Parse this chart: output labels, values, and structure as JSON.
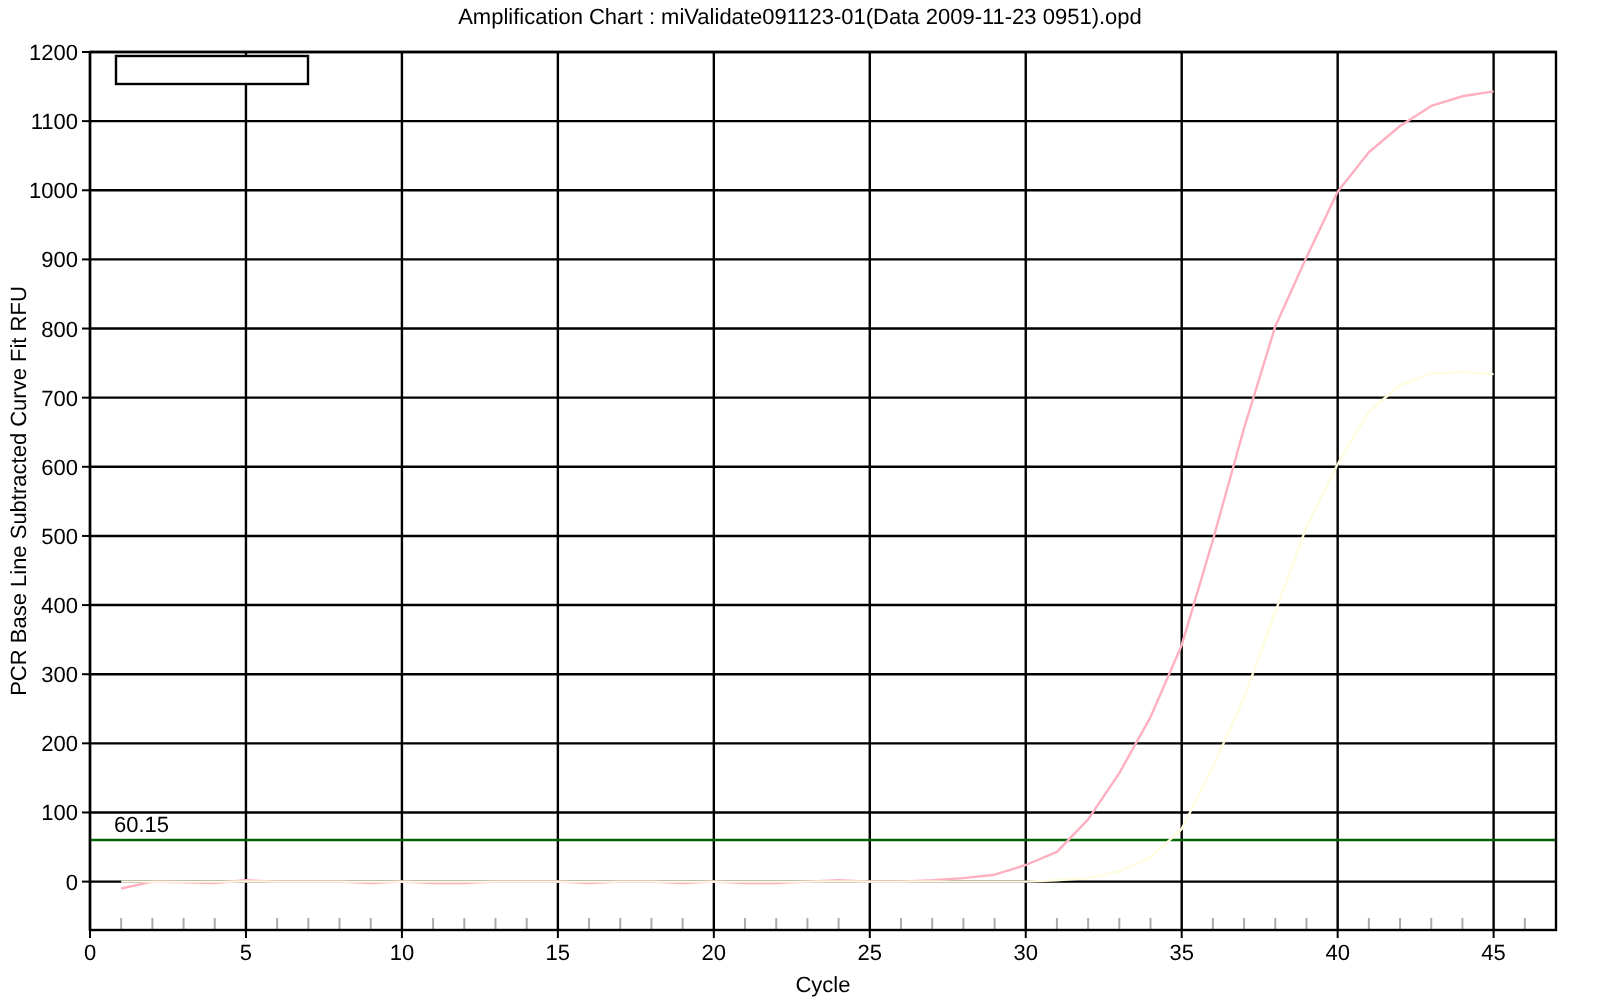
{
  "chart_data": {
    "type": "line",
    "title": "Amplification Chart : miValidate091123-01(Data 2009-11-23 0951).opd",
    "xlabel": "Cycle",
    "ylabel": "PCR Base Line Subtracted Curve Fit RFU",
    "x": [
      1,
      2,
      3,
      4,
      5,
      6,
      7,
      8,
      9,
      10,
      11,
      12,
      13,
      14,
      15,
      16,
      17,
      18,
      19,
      20,
      21,
      22,
      23,
      24,
      25,
      26,
      27,
      28,
      29,
      30,
      31,
      32,
      33,
      34,
      35,
      36,
      37,
      38,
      39,
      40,
      41,
      42,
      43,
      44,
      45
    ],
    "series": [
      {
        "color": "#ffb0c0",
        "values": [
          -10,
          0,
          -1,
          -2,
          2,
          0,
          0,
          0,
          -2,
          0,
          -2,
          -2,
          0,
          0,
          0,
          -2,
          0,
          0,
          -2,
          0,
          -2,
          -2,
          0,
          2,
          0,
          0,
          2,
          5,
          10,
          24,
          43,
          90,
          157,
          238,
          342,
          494,
          656,
          803,
          903,
          998,
          1055,
          1093,
          1122,
          1136,
          1143
        ]
      },
      {
        "color": "#fffce0",
        "values": [
          0,
          0,
          0,
          0,
          0,
          0,
          0,
          0,
          0,
          0,
          0,
          0,
          0,
          0,
          0,
          0,
          0,
          0,
          0,
          0,
          0,
          0,
          0,
          0,
          0,
          0,
          0,
          0,
          0,
          0,
          2,
          5,
          15,
          35,
          76,
          166,
          266,
          390,
          513,
          604,
          680,
          718,
          735,
          737,
          734
        ]
      }
    ],
    "xlim": [
      0,
      47
    ],
    "ylim": [
      -70,
      1200
    ],
    "xticks": [
      0,
      {
        "value": 1,
        "label": null
      },
      {
        "value": 2,
        "label": null
      },
      {
        "value": 3,
        "label": null
      },
      {
        "value": 4,
        "label": null
      },
      5,
      {
        "value": 6,
        "label": null
      },
      {
        "value": 7,
        "label": null
      },
      {
        "value": 8,
        "label": null
      },
      {
        "value": 9,
        "label": null
      },
      10,
      {
        "value": 11,
        "label": null
      },
      {
        "value": 12,
        "label": null
      },
      {
        "value": 13,
        "label": null
      },
      {
        "value": 14,
        "label": null
      },
      15,
      {
        "value": 16,
        "label": null
      },
      {
        "value": 17,
        "label": null
      },
      {
        "value": 18,
        "label": null
      },
      {
        "value": 19,
        "label": null
      },
      20,
      {
        "value": 21,
        "label": null
      },
      {
        "value": 22,
        "label": null
      },
      {
        "value": 23,
        "label": null
      },
      {
        "value": 24,
        "label": null
      },
      25,
      {
        "value": 26,
        "label": null
      },
      {
        "value": 27,
        "label": null
      },
      {
        "value": 28,
        "label": null
      },
      {
        "value": 29,
        "label": null
      },
      30,
      {
        "value": 31,
        "label": null
      },
      {
        "value": 32,
        "label": null
      },
      {
        "value": 33,
        "label": null
      },
      {
        "value": 34,
        "label": null
      },
      35,
      {
        "value": 36,
        "label": null
      },
      {
        "value": 37,
        "label": null
      },
      {
        "value": 38,
        "label": null
      },
      {
        "value": 39,
        "label": null
      },
      40,
      {
        "value": 41,
        "label": null
      },
      {
        "value": 42,
        "label": null
      },
      {
        "value": 43,
        "label": null
      },
      {
        "value": 44,
        "label": null
      },
      45,
      {
        "value": 46,
        "label": null
      }
    ],
    "yticks": [
      0,
      100,
      200,
      300,
      400,
      500,
      600,
      700,
      800,
      900,
      1000,
      1100,
      1200
    ],
    "ref_lines": [
      {
        "axis": "y",
        "value": 60.15,
        "label": "60.15",
        "color": "#006400"
      }
    ],
    "grid": true,
    "marker": "none",
    "line_style": "solid"
  }
}
